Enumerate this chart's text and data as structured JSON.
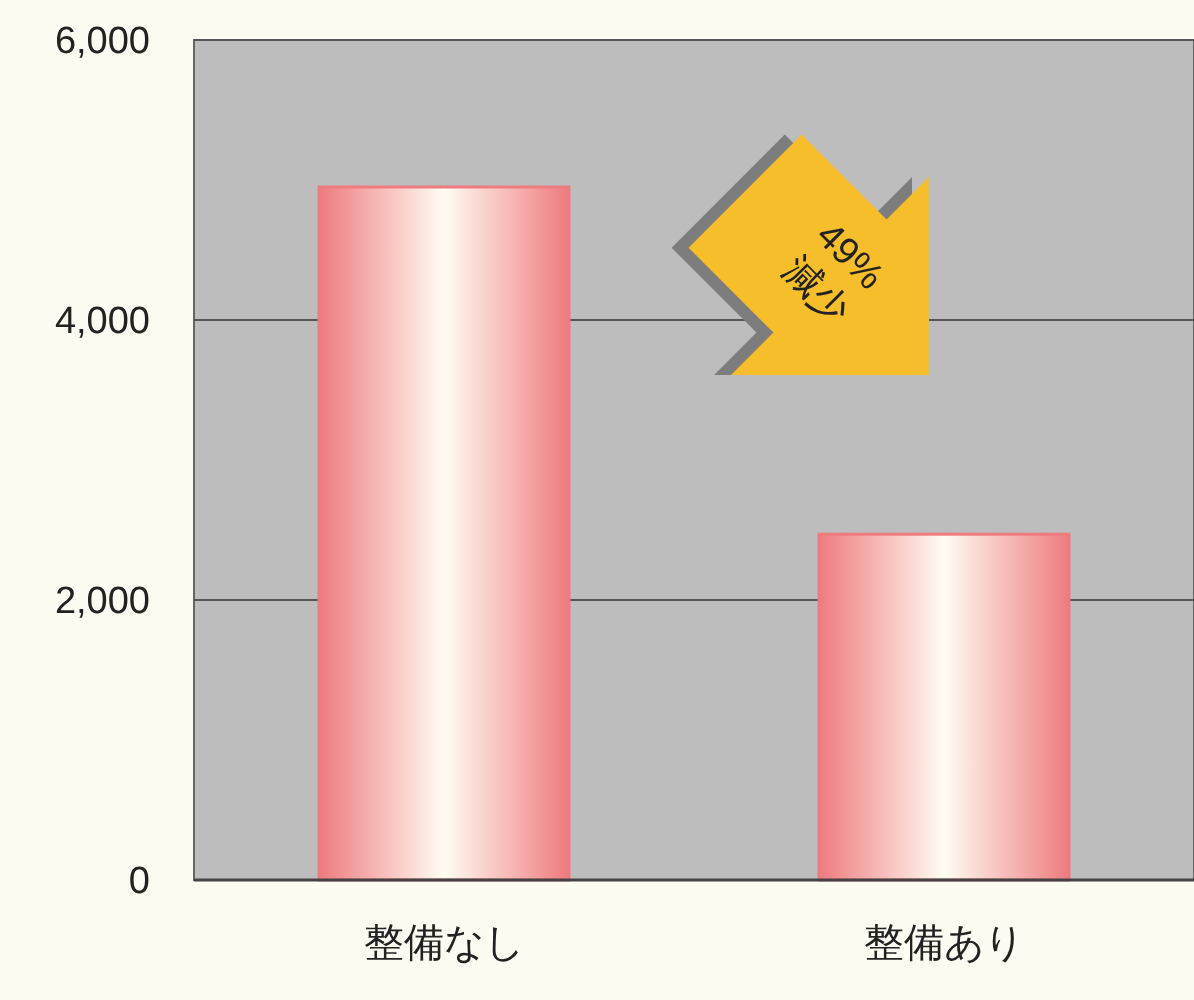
{
  "chart_data": {
    "type": "bar",
    "categories": [
      "整備なし",
      "整備あり"
    ],
    "values": [
      4950,
      2470
    ],
    "color": "#ee7b7f",
    "ylim": [
      0,
      6000
    ],
    "yticks": [
      {
        "value": 0,
        "label": "0"
      },
      {
        "value": 2000,
        "label": "2,000"
      },
      {
        "value": 4000,
        "label": "4,000"
      },
      {
        "value": 6000,
        "label": "6,000"
      }
    ],
    "grid": "y",
    "annotations": [
      "49%\n減少"
    ]
  }
}
